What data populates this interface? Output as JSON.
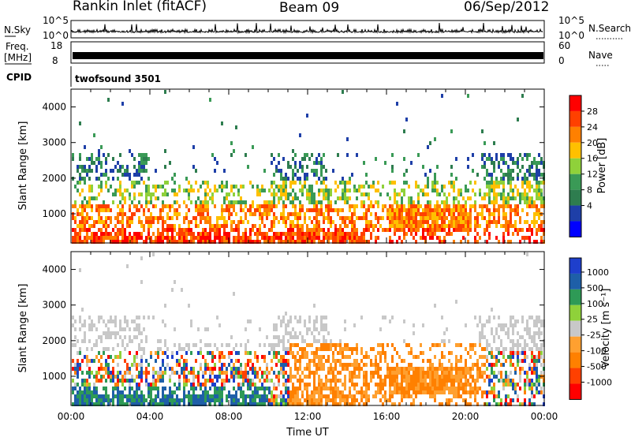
{
  "header": {
    "title": "Rankin Inlet (fitACF)",
    "beam": "Beam 09",
    "date": "06/Sep/2012"
  },
  "top_panels": {
    "nsky_label": "N.Sky",
    "nsky_ticks": [
      "10^5",
      "10^0"
    ],
    "nsearch_label": "N.Search",
    "nsearch_ticks": [
      "10^5",
      "10^0"
    ],
    "freq_label": "Freq.",
    "freq_unit": "[MHz]",
    "freq_ticks": [
      "18",
      "8"
    ],
    "nave_label": "Nave",
    "nave_ticks": [
      "60",
      "0"
    ],
    "cpid_label": "CPID",
    "cpid_value": "twofsound 3501"
  },
  "colors": {
    "power": [
      "#0000ff",
      "#1e3fa8",
      "#2e7d4f",
      "#3a9a56",
      "#8fd13a",
      "#ffc000",
      "#ff8000",
      "#ff4000",
      "#ff0000"
    ],
    "velocity": [
      "#ff0000",
      "#ff4000",
      "#ff8000",
      "#ffa030",
      "#c8c8c8",
      "#8fd13a",
      "#2e9a56",
      "#1e5fa8",
      "#1e3fcc"
    ]
  },
  "chart_data": [
    {
      "type": "heatmap",
      "name": "power",
      "x_ticks": [
        "00:00",
        "04:00",
        "08:00",
        "12:00",
        "16:00",
        "20:00",
        "00:00"
      ],
      "xlim": [
        0,
        24
      ],
      "ylabel": "Slant Range [km]",
      "ylim": [
        180,
        4500
      ],
      "y_ticks": [
        1000,
        2000,
        3000,
        4000
      ],
      "colorbar_label": "Power [dB]",
      "colorbar_ticks": [
        "4",
        "8",
        "12",
        "16",
        "20",
        "24",
        "28"
      ],
      "colorbar_range": [
        0,
        30
      ]
    },
    {
      "type": "heatmap",
      "name": "velocity",
      "x_ticks": [
        "00:00",
        "04:00",
        "08:00",
        "12:00",
        "16:00",
        "20:00",
        "00:00"
      ],
      "xlim": [
        0,
        24
      ],
      "xlabel": "Time UT",
      "ylabel": "Slant Range [km]",
      "ylim": [
        180,
        4500
      ],
      "y_ticks": [
        1000,
        2000,
        3000,
        4000
      ],
      "colorbar_label": "Velocity [m s⁻¹]",
      "colorbar_ticks": [
        "1000",
        "500",
        "100",
        "25",
        "-25",
        "-100",
        "-500",
        "-1000"
      ]
    }
  ]
}
